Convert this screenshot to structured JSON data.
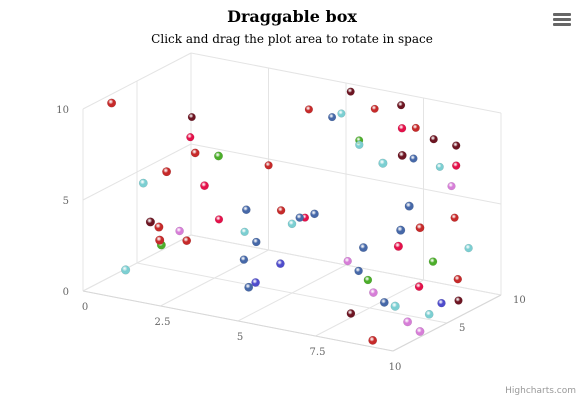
{
  "chart_data": {
    "type": "scatter",
    "title": "Draggable box",
    "subtitle": "Click and drag the plot area to rotate in space",
    "xlim": [
      0,
      10
    ],
    "ylim": [
      0,
      10
    ],
    "zlim": [
      0,
      10
    ],
    "x_ticks": [
      "0",
      "2.5",
      "5",
      "7.5",
      "10"
    ],
    "y_ticks": [
      "0",
      "5",
      "10"
    ],
    "z_ticks": [
      "5",
      "10"
    ],
    "grid": true,
    "palette": [
      "#4668a8",
      "#7ccfd2",
      "#4cae2a",
      "#c62a2a",
      "#6d1522",
      "#e4114a",
      "#d77ed8",
      "#4f4ccc"
    ],
    "points": [
      {
        "x": 0.2,
        "y": 6.7,
        "z": 9.5,
        "c": 4
      },
      {
        "x": 0.5,
        "y": 6.0,
        "z": 8.5,
        "c": 5
      },
      {
        "x": 0.4,
        "y": 10.0,
        "z": 1.5,
        "c": 3
      },
      {
        "x": 0.9,
        "y": 5.3,
        "z": 3.0,
        "c": 1
      },
      {
        "x": 1.2,
        "y": 2.0,
        "z": 5.5,
        "c": 6
      },
      {
        "x": 1.6,
        "y": 2.0,
        "z": 8.0,
        "c": 5
      },
      {
        "x": 1.2,
        "y": 1.4,
        "z": 0.5,
        "c": 1
      },
      {
        "x": 2.0,
        "y": 4.3,
        "z": 0.5,
        "c": 4
      },
      {
        "x": 2.1,
        "y": 3.9,
        "z": 1.0,
        "c": 3
      },
      {
        "x": 2.3,
        "y": 3.4,
        "z": 0.5,
        "c": 3
      },
      {
        "x": 1.9,
        "y": 2.6,
        "z": 1.8,
        "c": 2
      },
      {
        "x": 2.3,
        "y": 2.6,
        "z": 3.0,
        "c": 3
      },
      {
        "x": 2.0,
        "y": 6.6,
        "z": 2.0,
        "c": 3
      },
      {
        "x": 2.4,
        "y": 7.3,
        "z": 3.5,
        "c": 3
      },
      {
        "x": 2.7,
        "y": 5.6,
        "z": 3.5,
        "c": 5
      },
      {
        "x": 2.6,
        "y": 1.8,
        "z": 7.5,
        "c": 1
      },
      {
        "x": 3.2,
        "y": 5.5,
        "z": 8.0,
        "c": 3
      },
      {
        "x": 3.5,
        "y": 2.0,
        "z": 6.0,
        "c": 0
      },
      {
        "x": 3.1,
        "y": 0.9,
        "z": 6.0,
        "c": 0
      },
      {
        "x": 4.0,
        "y": 0.4,
        "z": 4.5,
        "c": 7
      },
      {
        "x": 4.3,
        "y": 0.7,
        "z": 3.0,
        "c": 0
      },
      {
        "x": 3.7,
        "y": 4.3,
        "z": 4.5,
        "c": 0
      },
      {
        "x": 4.3,
        "y": 4.0,
        "z": 6.0,
        "c": 3
      },
      {
        "x": 4.2,
        "y": 2.8,
        "z": 8.5,
        "c": 5
      },
      {
        "x": 5.0,
        "y": 3.8,
        "z": 5.0,
        "c": 1
      },
      {
        "x": 4.9,
        "y": 3.8,
        "z": 6.0,
        "c": 0
      },
      {
        "x": 4.8,
        "y": 1.7,
        "z": 4.5,
        "c": 7
      },
      {
        "x": 4.5,
        "y": 9.0,
        "z": 8.0,
        "c": 3
      },
      {
        "x": 4.9,
        "y": 8.4,
        "z": 9.0,
        "c": 0
      },
      {
        "x": 5.2,
        "y": 8.7,
        "z": 9.0,
        "c": 1
      },
      {
        "x": 5.5,
        "y": 10.0,
        "z": 9.0,
        "c": 4
      },
      {
        "x": 5.6,
        "y": 7.2,
        "z": 9.5,
        "c": 2
      },
      {
        "x": 6.1,
        "y": 9.1,
        "z": 9.5,
        "c": 3
      },
      {
        "x": 6.3,
        "y": 7.8,
        "z": 7.5,
        "c": 1
      },
      {
        "x": 5.9,
        "y": 4.8,
        "z": 4.5,
        "c": 0
      },
      {
        "x": 6.1,
        "y": 1.5,
        "z": 7.0,
        "c": 6
      },
      {
        "x": 6.8,
        "y": 1.5,
        "z": 6.0,
        "c": 0
      },
      {
        "x": 7.1,
        "y": 1.1,
        "z": 6.0,
        "c": 2
      },
      {
        "x": 6.9,
        "y": -0.5,
        "z": 5.0,
        "c": 4
      },
      {
        "x": 7.3,
        "y": 10.0,
        "z": 8.5,
        "c": 4
      },
      {
        "x": 7.6,
        "y": 8.7,
        "z": 9.0,
        "c": 3
      },
      {
        "x": 7.7,
        "y": 7.2,
        "z": 8.5,
        "c": 0
      },
      {
        "x": 8.2,
        "y": 6.6,
        "z": 9.5,
        "c": 1
      },
      {
        "x": 8.0,
        "y": 4.1,
        "z": 3.0,
        "c": 0
      },
      {
        "x": 7.8,
        "y": 1.1,
        "z": 4.5,
        "c": 6
      },
      {
        "x": 8.5,
        "y": 1.1,
        "z": 3.5,
        "c": 0
      },
      {
        "x": 8.3,
        "y": -0.9,
        "z": 3.0,
        "c": 3
      },
      {
        "x": 8.2,
        "y": 9.8,
        "z": 6.0,
        "c": 5
      },
      {
        "x": 8.7,
        "y": 8.9,
        "z": 7.5,
        "c": 4
      },
      {
        "x": 9.6,
        "y": 9.0,
        "z": 7.0,
        "c": 4
      },
      {
        "x": 9.6,
        "y": 7.9,
        "z": 7.0,
        "c": 5
      },
      {
        "x": 9.1,
        "y": 6.3,
        "z": 8.0,
        "c": 6
      },
      {
        "x": 9.2,
        "y": 4.6,
        "z": 8.0,
        "c": 3
      },
      {
        "x": 9.2,
        "y": 2.8,
        "z": 6.0,
        "c": 2
      },
      {
        "x": 9.1,
        "y": 1.7,
        "z": 5.0,
        "c": 5
      },
      {
        "x": 9.6,
        "y": 0.5,
        "z": 4.5,
        "c": 1
      },
      {
        "x": 9.3,
        "y": 0.4,
        "z": 6.5,
        "c": 7
      },
      {
        "x": 9.6,
        "y": 0.7,
        "z": 2.5,
        "c": 6
      },
      {
        "x": 9.5,
        "y": 0.3,
        "z": 7.5,
        "c": 4
      },
      {
        "x": 10.0,
        "y": 3.5,
        "z": 7.0,
        "c": 1
      },
      {
        "x": 9.5,
        "y": 10.0,
        "z": 0.5,
        "c": 1
      },
      {
        "x": 9.6,
        "y": 10.0,
        "z": 2.0,
        "c": 4
      },
      {
        "x": 10.0,
        "y": 7.5,
        "z": 1.5,
        "c": 0
      },
      {
        "x": 9.9,
        "y": 6.3,
        "z": 1.0,
        "c": 0
      },
      {
        "x": 10.0,
        "y": 6.0,
        "z": 2.5,
        "c": 3
      },
      {
        "x": 10.0,
        "y": 2.1,
        "z": 6.0,
        "c": 3
      },
      {
        "x": 10.0,
        "y": 0.3,
        "z": 2.5,
        "c": 6
      },
      {
        "x": 10.0,
        "y": 2.4,
        "z": 0.2,
        "c": 1
      },
      {
        "x": 10.0,
        "y": 5.6,
        "z": 0.5,
        "c": 5
      },
      {
        "x": 3.5,
        "y": 7.8,
        "z": 2.5,
        "c": 2
      }
    ]
  },
  "credits": "Highcharts.com"
}
